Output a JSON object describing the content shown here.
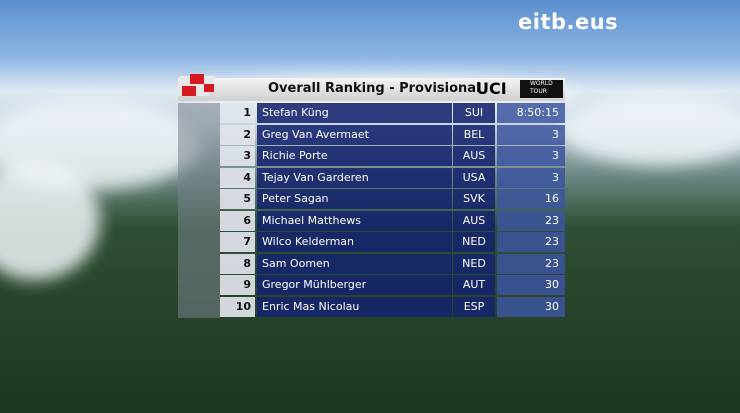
{
  "broadcaster": {
    "logo": "eitb.eus"
  },
  "header": {
    "title": "Overall Ranking - Provisional",
    "uci": "UCI",
    "tour": "WORLD TOUR"
  },
  "table": {
    "rows": [
      [
        1,
        "Stefan Küng",
        "SUI",
        "8:50:15"
      ],
      [
        2,
        "Greg Van Avermaet",
        "BEL",
        3
      ],
      [
        3,
        "Richie Porte",
        "AUS",
        3
      ],
      [
        4,
        "Tejay Van Garderen",
        "USA",
        3
      ],
      [
        5,
        "Peter Sagan",
        "SVK",
        16
      ],
      [
        6,
        "Michael Matthews",
        "AUS",
        23
      ],
      [
        7,
        "Wilco Kelderman",
        "NED",
        23
      ],
      [
        8,
        "Sam Oomen",
        "NED",
        23
      ],
      [
        9,
        "Gregor Mühlberger",
        "AUT",
        30
      ],
      [
        10,
        "Enric Mas Nicolau",
        "ESP",
        30
      ]
    ]
  }
}
